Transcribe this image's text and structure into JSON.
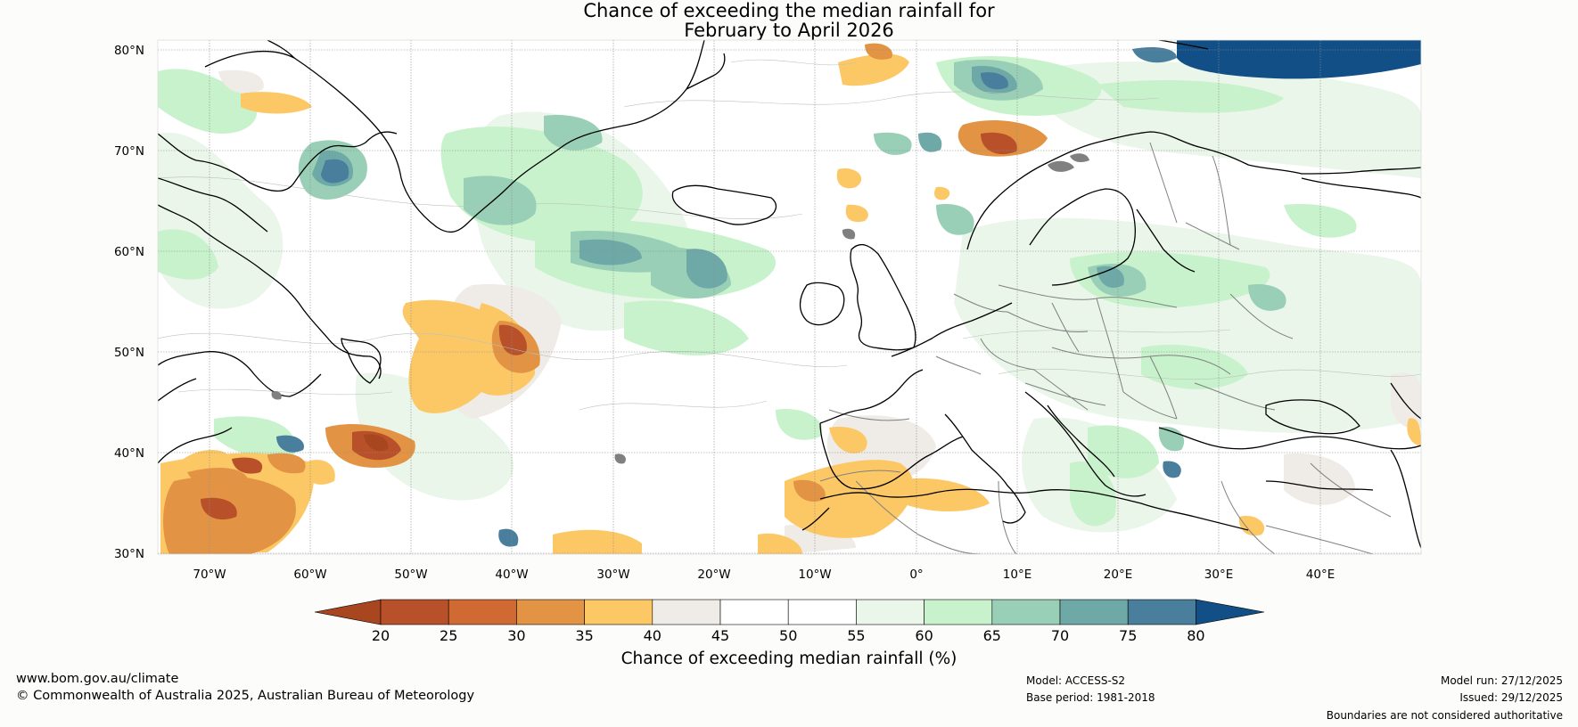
{
  "title": {
    "line1": "Chance of exceeding the median rainfall for",
    "line2": "February to April 2026"
  },
  "map": {
    "lat_labels": [
      "80°N",
      "70°N",
      "60°N",
      "50°N",
      "40°N",
      "30°N"
    ],
    "lon_labels": [
      "70°W",
      "60°W",
      "50°W",
      "40°W",
      "30°W",
      "20°W",
      "10°W",
      "0°",
      "10°E",
      "20°E",
      "30°E",
      "40°E"
    ],
    "palette": {
      "c20": "#a8461f",
      "c25": "#b85129",
      "c30": "#d06a32",
      "c35": "#e29444",
      "c40": "#fcc866",
      "c45": "#efebe6",
      "c50": "#ffffff",
      "c55": "#ffffff",
      "c60": "#eaf6ea",
      "c65": "#c8f2cc",
      "c70": "#98cfb6",
      "c75": "#6ea9a8",
      "c80": "#497f9c",
      "cmax": "#124f87",
      "land_outline": "#000000",
      "borders": "#808080",
      "grid": "#8c8c8c"
    }
  },
  "colorbar": {
    "ticks": [
      "20",
      "25",
      "30",
      "35",
      "40",
      "45",
      "50",
      "55",
      "60",
      "65",
      "70",
      "75",
      "80"
    ],
    "label": "Chance of exceeding median rainfall (%)"
  },
  "footer": {
    "website": "www.bom.gov.au/climate",
    "copyright": "© Commonwealth of Australia 2025, Australian Bureau of Meteorology",
    "model": "Model: ACCESS-S2",
    "base_period": "Base period: 1981-2018",
    "model_run": "Model run: 27/12/2025",
    "issued": "Issued: 29/12/2025",
    "disclaimer": "Boundaries are not considered authoritative"
  }
}
